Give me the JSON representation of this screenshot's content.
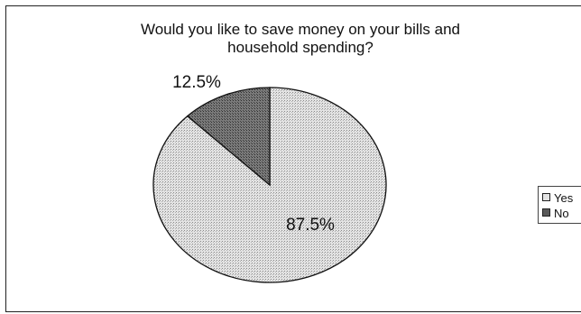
{
  "chart_data": {
    "type": "pie",
    "title": "Would you like to save money on your bills and household spending?",
    "title_lines": [
      "Would you like to save money on your bills and",
      "household spending?"
    ],
    "categories": [
      "Yes",
      "No"
    ],
    "values": [
      87.5,
      12.5
    ],
    "data_labels": [
      "87.5%",
      "12.5%"
    ],
    "colors": [
      "#d9d9d9",
      "#6e6e6e"
    ],
    "legend_position": "right"
  }
}
